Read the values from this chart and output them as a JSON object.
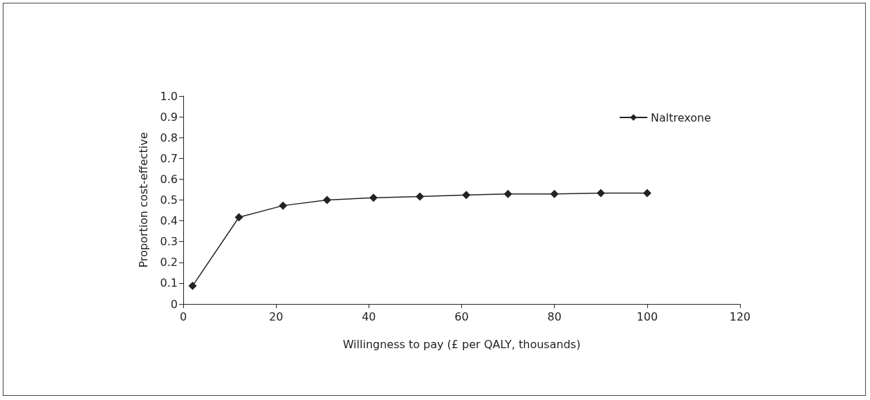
{
  "chart_data": {
    "type": "line",
    "xlabel": "Willingness to pay (£ per QALY, thousands)",
    "ylabel": "Proportion cost-effective",
    "x": [
      2,
      12,
      21.5,
      31,
      41,
      51,
      61,
      70,
      80,
      90,
      100
    ],
    "series": [
      {
        "name": "Naltrexone",
        "color": "#222222",
        "values": [
          0.087,
          0.417,
          0.473,
          0.5,
          0.511,
          0.517,
          0.524,
          0.529,
          0.529,
          0.533,
          0.533
        ]
      }
    ],
    "xlim": [
      0,
      120
    ],
    "xticks": [
      0,
      20,
      40,
      60,
      80,
      100,
      120
    ],
    "ylim": [
      0,
      1
    ],
    "yticks": [
      0,
      0.1,
      0.2,
      0.3,
      0.4,
      0.5,
      0.6,
      0.7,
      0.8,
      0.9,
      {
        "value": 1,
        "label": "1.0"
      }
    ],
    "marker": "diamond",
    "line_style": "solid",
    "legend": "top right",
    "grid": false
  }
}
